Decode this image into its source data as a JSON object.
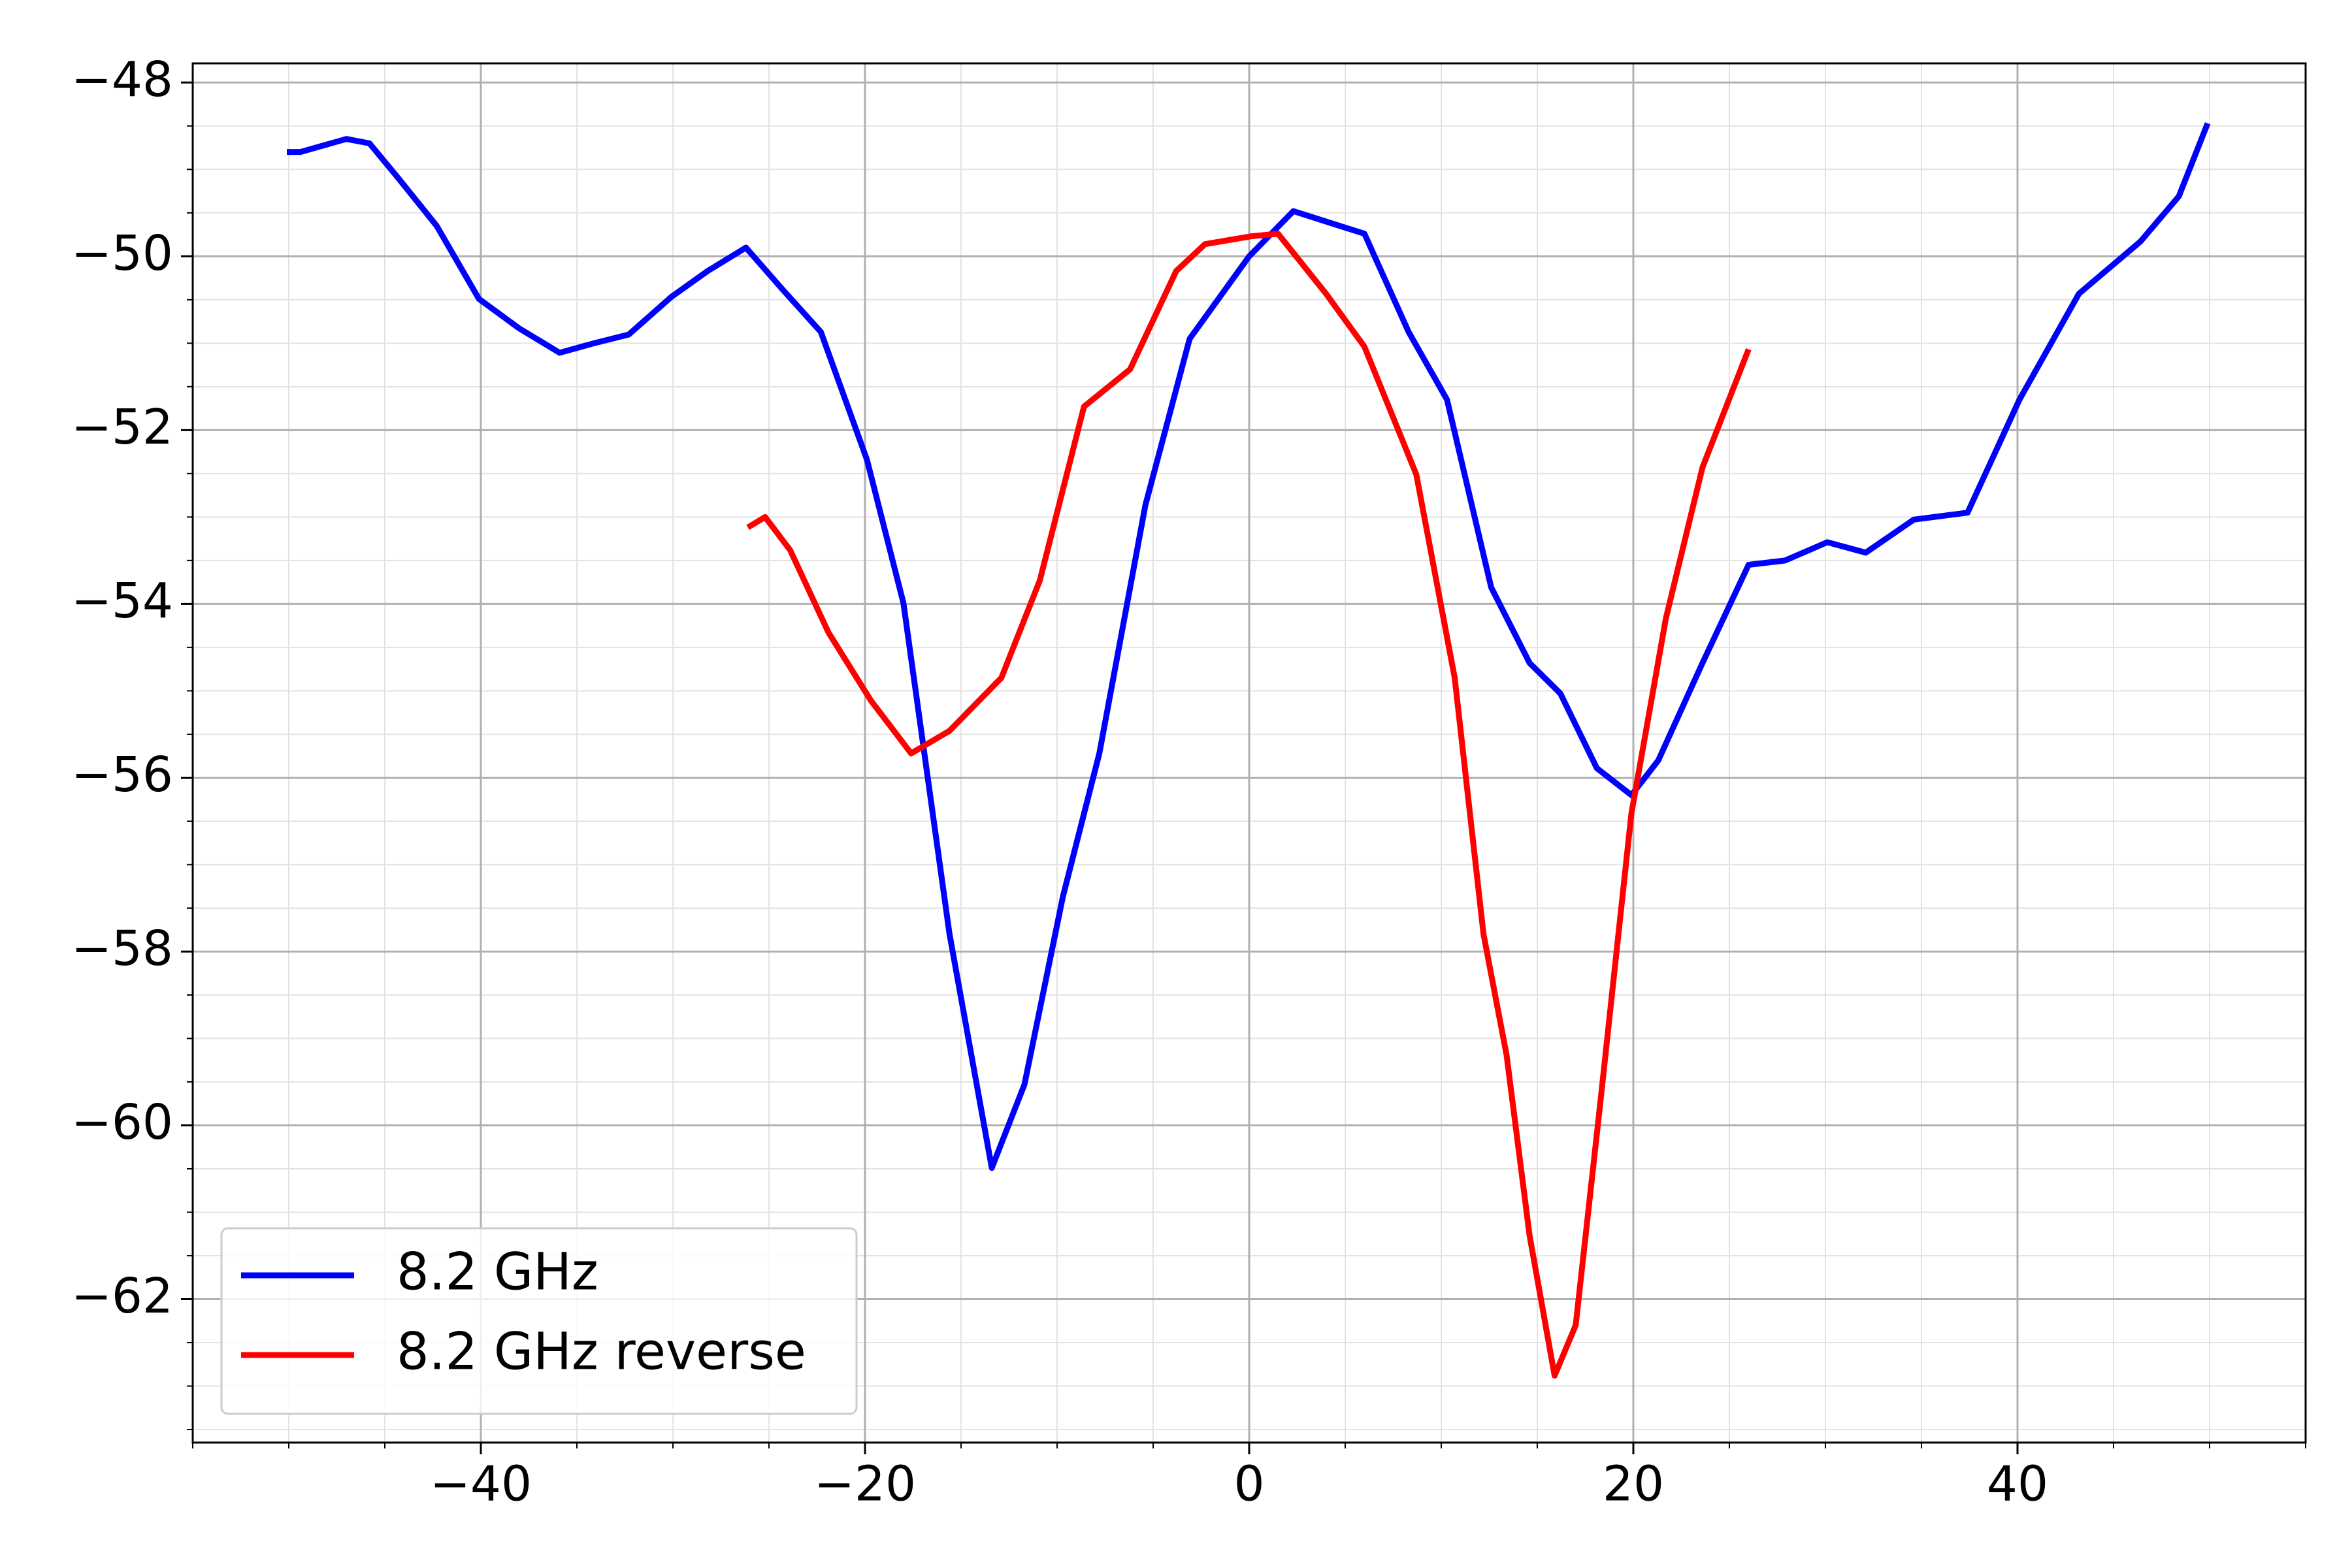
{
  "chart_data": {
    "type": "line",
    "xlim": [
      -55,
      55
    ],
    "ylim": [
      -63.65,
      -47.78
    ],
    "xticks": [
      {
        "value": -40,
        "label": "−40"
      },
      {
        "value": -20,
        "label": "−20"
      },
      0,
      20,
      40
    ],
    "yticks": [
      {
        "value": -48,
        "label": "−48"
      },
      {
        "value": -50,
        "label": "−50"
      },
      {
        "value": -52,
        "label": "−52"
      },
      {
        "value": -54,
        "label": "−54"
      },
      {
        "value": -56,
        "label": "−56"
      },
      {
        "value": -58,
        "label": "−58"
      },
      {
        "value": -60,
        "label": "−60"
      },
      {
        "value": -62,
        "label": "−62"
      }
    ],
    "grid": true,
    "minor_grid": true,
    "legend": "lower left",
    "series": [
      {
        "name": "8.2 GHz",
        "color": "#0000ff",
        "x": [
          -50.1,
          -49.4,
          -47,
          -45.8,
          -44.3,
          -42.3,
          -40.1,
          -38,
          -35.9,
          -34.1,
          -32.3,
          -30.1,
          -28.2,
          -26.2,
          -24.3,
          -22.3,
          -19.9,
          -18,
          -15.6,
          -13.4,
          -11.7,
          -9.7,
          -7.8,
          -5.4,
          -3.1,
          0,
          2.3,
          4,
          6,
          8.3,
          10.3,
          12.6,
          14.6,
          16.2,
          18.1,
          19.9,
          21.3,
          23.6,
          26,
          27.9,
          30.1,
          32.1,
          34.6,
          37.4,
          40.1,
          43.2,
          46.4,
          48.4,
          49.9
        ],
        "values": [
          -48.8,
          -48.8,
          -48.65,
          -48.7,
          -49.1,
          -49.65,
          -50.49,
          -50.83,
          -51.11,
          -51.0,
          -50.9,
          -50.47,
          -50.17,
          -49.9,
          -50.38,
          -50.87,
          -52.34,
          -53.99,
          -57.8,
          -60.49,
          -59.53,
          -57.37,
          -55.72,
          -52.86,
          -50.95,
          -50,
          -49.48,
          -49.6,
          -49.74,
          -50.87,
          -51.65,
          -53.81,
          -54.68,
          -55.03,
          -55.89,
          -56.2,
          -55.8,
          -54.68,
          -53.55,
          -53.5,
          -53.29,
          -53.41,
          -53.03,
          -52.95,
          -51.65,
          -50.43,
          -49.83,
          -49.31,
          -48.47
        ]
      },
      {
        "name": "8.2 GHz reverse",
        "color": "#ff0000",
        "x": [
          -26.1,
          -25.2,
          -23.9,
          -21.9,
          -19.7,
          -17.6,
          -15.6,
          -12.9,
          -10.9,
          -8.6,
          -6.2,
          -3.8,
          -2.3,
          0.1,
          1.5,
          4,
          6,
          8.7,
          10.7,
          12.2,
          13.4,
          14.6,
          15.9,
          17,
          18.3,
          19.9,
          21.7,
          23.6,
          26
        ],
        "values": [
          -53.12,
          -53.0,
          -53.38,
          -54.33,
          -55.11,
          -55.72,
          -55.46,
          -54.85,
          -53.73,
          -51.73,
          -51.3,
          -50.17,
          -49.86,
          -49.77,
          -49.74,
          -50.43,
          -51.04,
          -52.51,
          -54.85,
          -57.8,
          -59.19,
          -61.27,
          -62.88,
          -62.3,
          -59.7,
          -56.41,
          -54.16,
          -52.43,
          -51.07
        ]
      }
    ]
  }
}
